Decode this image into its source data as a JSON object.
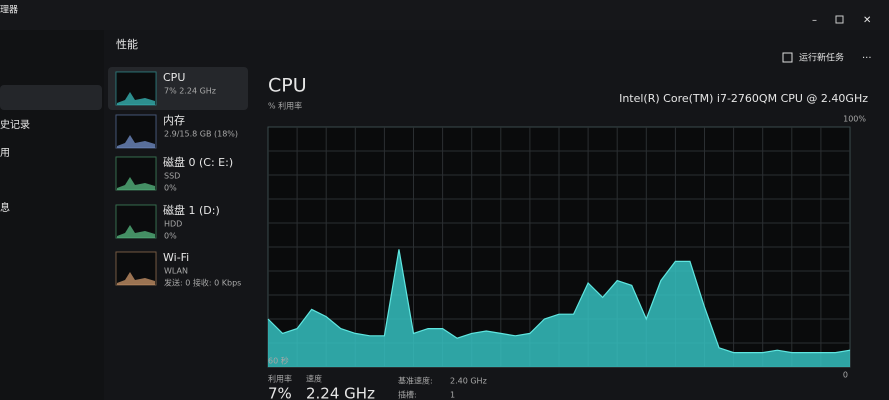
{
  "window": {
    "title": "理器",
    "nav": [
      "史记录",
      "用",
      "息"
    ]
  },
  "header": {
    "title": "性能",
    "run_task": "运行新任务",
    "more": "···"
  },
  "devices": [
    {
      "name": "CPU",
      "detail": "7% 2.24 GHz"
    },
    {
      "name": "内存",
      "detail": "2.9/15.8 GB (18%)"
    },
    {
      "name": "磁盘 0 (C: E:)",
      "type": "SSD",
      "detail": "0%"
    },
    {
      "name": "磁盘 1 (D:)",
      "type": "HDD",
      "detail": "0%"
    },
    {
      "name": "Wi-Fi",
      "type": "WLAN",
      "detail": "发送: 0 接收: 0 Kbps"
    }
  ],
  "main": {
    "title": "CPU",
    "subtitle": "% 利用率",
    "model": "Intel(R) Core(TM) i7-2760QM CPU @ 2.40GHz",
    "stats": [
      {
        "label": "利用率",
        "value": "7%"
      },
      {
        "label": "速度",
        "value": "2.24 GHz"
      },
      {
        "label": "基准速度:",
        "value": "2.40 GHz"
      },
      {
        "label": "插槽:",
        "value": "1"
      }
    ]
  },
  "graph": {
    "max_label": "100%",
    "min_label": "0",
    "time_label": "60 秒",
    "ylim": [
      0,
      100
    ],
    "values": [
      20,
      14,
      16,
      24,
      21,
      16,
      14,
      13,
      13,
      49,
      14,
      16,
      16,
      12,
      14,
      15,
      14,
      13,
      14,
      20,
      22,
      22,
      35,
      29,
      36,
      34,
      20,
      36,
      44,
      44,
      25,
      8,
      6,
      6,
      6,
      7,
      6,
      6,
      6,
      6,
      7
    ]
  }
}
